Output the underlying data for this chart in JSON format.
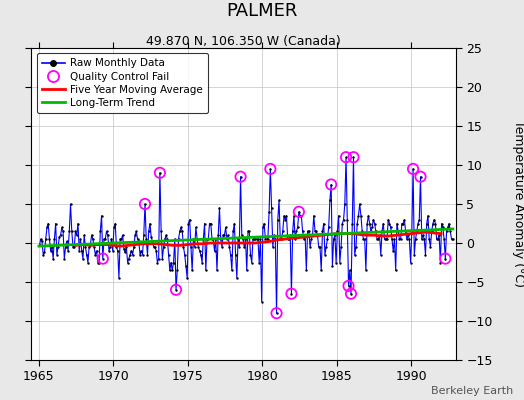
{
  "title": "PALMER",
  "subtitle": "49.870 N, 106.350 W (Canada)",
  "ylabel": "Temperature Anomaly (°C)",
  "watermark": "Berkeley Earth",
  "xlim": [
    1964.5,
    1993.0
  ],
  "ylim": [
    -15,
    25
  ],
  "yticks": [
    -15,
    -10,
    -5,
    0,
    5,
    10,
    15,
    20,
    25
  ],
  "xticks": [
    1965,
    1970,
    1975,
    1980,
    1985,
    1990
  ],
  "bg_color": "#e8e8e8",
  "plot_bg_color": "#ffffff",
  "raw_color": "#0000ff",
  "ma_color": "#ff0000",
  "trend_color": "#00bb00",
  "qc_color": "#ff00ff",
  "raw_data": [
    [
      1965.042,
      -0.3
    ],
    [
      1965.125,
      0.5
    ],
    [
      1965.208,
      0.2
    ],
    [
      1965.292,
      -1.5
    ],
    [
      1965.375,
      -1.2
    ],
    [
      1965.458,
      0.5
    ],
    [
      1965.542,
      2.0
    ],
    [
      1965.625,
      2.5
    ],
    [
      1965.708,
      0.5
    ],
    [
      1965.792,
      -1.0
    ],
    [
      1965.875,
      -0.5
    ],
    [
      1965.958,
      -2.0
    ],
    [
      1966.042,
      0.5
    ],
    [
      1966.125,
      2.5
    ],
    [
      1966.208,
      -1.5
    ],
    [
      1966.292,
      -0.5
    ],
    [
      1966.375,
      0.8
    ],
    [
      1966.458,
      1.0
    ],
    [
      1966.542,
      2.0
    ],
    [
      1966.625,
      1.5
    ],
    [
      1966.708,
      -2.0
    ],
    [
      1966.792,
      -0.5
    ],
    [
      1966.875,
      0.2
    ],
    [
      1966.958,
      -1.0
    ],
    [
      1967.042,
      1.5
    ],
    [
      1967.125,
      5.0
    ],
    [
      1967.208,
      1.5
    ],
    [
      1967.292,
      -0.5
    ],
    [
      1967.375,
      -0.5
    ],
    [
      1967.458,
      1.5
    ],
    [
      1967.542,
      1.0
    ],
    [
      1967.625,
      2.5
    ],
    [
      1967.708,
      -1.0
    ],
    [
      1967.792,
      0.5
    ],
    [
      1967.875,
      -1.0
    ],
    [
      1967.958,
      -2.0
    ],
    [
      1968.042,
      1.0
    ],
    [
      1968.125,
      -0.5
    ],
    [
      1968.208,
      -1.5
    ],
    [
      1968.292,
      -2.5
    ],
    [
      1968.375,
      -0.5
    ],
    [
      1968.458,
      -0.2
    ],
    [
      1968.542,
      1.0
    ],
    [
      1968.625,
      0.5
    ],
    [
      1968.708,
      -0.5
    ],
    [
      1968.792,
      -1.5
    ],
    [
      1968.875,
      -1.0
    ],
    [
      1968.958,
      -2.5
    ],
    [
      1969.042,
      -2.5
    ],
    [
      1969.125,
      1.5
    ],
    [
      1969.208,
      3.5
    ],
    [
      1969.292,
      -2.0
    ],
    [
      1969.375,
      0.5
    ],
    [
      1969.458,
      0.5
    ],
    [
      1969.542,
      1.5
    ],
    [
      1969.625,
      1.0
    ],
    [
      1969.708,
      -1.0
    ],
    [
      1969.792,
      -0.5
    ],
    [
      1969.875,
      0.5
    ],
    [
      1969.958,
      -1.0
    ],
    [
      1970.042,
      2.0
    ],
    [
      1970.125,
      2.5
    ],
    [
      1970.208,
      -0.5
    ],
    [
      1970.292,
      -1.0
    ],
    [
      1970.375,
      -4.5
    ],
    [
      1970.458,
      0.5
    ],
    [
      1970.542,
      0.5
    ],
    [
      1970.625,
      1.0
    ],
    [
      1970.708,
      -0.8
    ],
    [
      1970.792,
      -1.2
    ],
    [
      1970.875,
      -0.5
    ],
    [
      1970.958,
      -2.5
    ],
    [
      1971.042,
      -2.0
    ],
    [
      1971.125,
      -1.5
    ],
    [
      1971.208,
      -1.0
    ],
    [
      1971.292,
      -1.5
    ],
    [
      1971.375,
      -0.5
    ],
    [
      1971.458,
      1.0
    ],
    [
      1971.542,
      1.5
    ],
    [
      1971.625,
      0.5
    ],
    [
      1971.708,
      0.2
    ],
    [
      1971.792,
      -1.5
    ],
    [
      1971.875,
      -1.0
    ],
    [
      1971.958,
      -1.5
    ],
    [
      1972.042,
      1.0
    ],
    [
      1972.125,
      5.0
    ],
    [
      1972.208,
      0.5
    ],
    [
      1972.292,
      -1.5
    ],
    [
      1972.375,
      1.5
    ],
    [
      1972.458,
      2.5
    ],
    [
      1972.542,
      0.8
    ],
    [
      1972.625,
      0.2
    ],
    [
      1972.708,
      -0.5
    ],
    [
      1972.792,
      -0.5
    ],
    [
      1972.875,
      -1.0
    ],
    [
      1972.958,
      -2.5
    ],
    [
      1973.042,
      -2.0
    ],
    [
      1973.125,
      9.0
    ],
    [
      1973.208,
      1.5
    ],
    [
      1973.292,
      -2.0
    ],
    [
      1973.375,
      -0.5
    ],
    [
      1973.458,
      0.5
    ],
    [
      1973.542,
      1.0
    ],
    [
      1973.625,
      0.5
    ],
    [
      1973.708,
      -1.5
    ],
    [
      1973.792,
      -3.5
    ],
    [
      1973.875,
      -2.5
    ],
    [
      1973.958,
      -3.5
    ],
    [
      1974.042,
      -2.5
    ],
    [
      1974.125,
      0.5
    ],
    [
      1974.208,
      -6.0
    ],
    [
      1974.292,
      -3.5
    ],
    [
      1974.375,
      0.5
    ],
    [
      1974.458,
      1.5
    ],
    [
      1974.542,
      2.0
    ],
    [
      1974.625,
      1.5
    ],
    [
      1974.708,
      -0.5
    ],
    [
      1974.792,
      -1.5
    ],
    [
      1974.875,
      -3.0
    ],
    [
      1974.958,
      -4.5
    ],
    [
      1975.042,
      2.5
    ],
    [
      1975.125,
      3.0
    ],
    [
      1975.208,
      -0.5
    ],
    [
      1975.292,
      -3.5
    ],
    [
      1975.375,
      0.5
    ],
    [
      1975.458,
      -0.5
    ],
    [
      1975.542,
      2.0
    ],
    [
      1975.625,
      0.5
    ],
    [
      1975.708,
      -0.5
    ],
    [
      1975.792,
      -1.0
    ],
    [
      1975.875,
      -1.5
    ],
    [
      1975.958,
      -2.5
    ],
    [
      1976.042,
      0.5
    ],
    [
      1976.125,
      2.5
    ],
    [
      1976.208,
      -3.5
    ],
    [
      1976.292,
      0.5
    ],
    [
      1976.375,
      0.5
    ],
    [
      1976.458,
      2.5
    ],
    [
      1976.542,
      2.5
    ],
    [
      1976.625,
      0.5
    ],
    [
      1976.708,
      0.5
    ],
    [
      1976.792,
      -1.0
    ],
    [
      1976.875,
      0.5
    ],
    [
      1976.958,
      -3.5
    ],
    [
      1977.042,
      1.0
    ],
    [
      1977.125,
      4.5
    ],
    [
      1977.208,
      0.5
    ],
    [
      1977.292,
      -0.5
    ],
    [
      1977.375,
      1.0
    ],
    [
      1977.458,
      1.0
    ],
    [
      1977.542,
      2.0
    ],
    [
      1977.625,
      0.5
    ],
    [
      1977.708,
      1.0
    ],
    [
      1977.792,
      -0.5
    ],
    [
      1977.875,
      -1.5
    ],
    [
      1977.958,
      -3.5
    ],
    [
      1978.042,
      1.5
    ],
    [
      1978.125,
      2.5
    ],
    [
      1978.208,
      -1.5
    ],
    [
      1978.292,
      -4.5
    ],
    [
      1978.375,
      0.5
    ],
    [
      1978.458,
      -0.5
    ],
    [
      1978.542,
      8.5
    ],
    [
      1978.625,
      1.0
    ],
    [
      1978.708,
      0.5
    ],
    [
      1978.792,
      -0.5
    ],
    [
      1978.875,
      0.5
    ],
    [
      1978.958,
      -3.5
    ],
    [
      1979.042,
      1.5
    ],
    [
      1979.125,
      1.5
    ],
    [
      1979.208,
      -1.5
    ],
    [
      1979.292,
      -2.5
    ],
    [
      1979.375,
      0.5
    ],
    [
      1979.458,
      0.5
    ],
    [
      1979.542,
      0.5
    ],
    [
      1979.625,
      0.5
    ],
    [
      1979.708,
      0.5
    ],
    [
      1979.792,
      -2.5
    ],
    [
      1979.875,
      0.5
    ],
    [
      1979.958,
      -7.5
    ],
    [
      1980.042,
      2.0
    ],
    [
      1980.125,
      2.5
    ],
    [
      1980.208,
      0.5
    ],
    [
      1980.292,
      0.5
    ],
    [
      1980.375,
      0.5
    ],
    [
      1980.458,
      4.0
    ],
    [
      1980.542,
      9.5
    ],
    [
      1980.625,
      4.5
    ],
    [
      1980.708,
      -0.5
    ],
    [
      1980.792,
      1.0
    ],
    [
      1980.875,
      0.5
    ],
    [
      1980.958,
      -9.0
    ],
    [
      1981.042,
      3.0
    ],
    [
      1981.125,
      5.5
    ],
    [
      1981.208,
      0.5
    ],
    [
      1981.292,
      0.5
    ],
    [
      1981.375,
      1.5
    ],
    [
      1981.458,
      3.5
    ],
    [
      1981.542,
      3.0
    ],
    [
      1981.625,
      3.5
    ],
    [
      1981.708,
      0.5
    ],
    [
      1981.792,
      0.5
    ],
    [
      1981.875,
      1.0
    ],
    [
      1981.958,
      -6.5
    ],
    [
      1982.042,
      1.5
    ],
    [
      1982.125,
      3.5
    ],
    [
      1982.208,
      0.5
    ],
    [
      1982.292,
      1.5
    ],
    [
      1982.375,
      2.0
    ],
    [
      1982.458,
      4.0
    ],
    [
      1982.542,
      3.5
    ],
    [
      1982.625,
      3.5
    ],
    [
      1982.708,
      1.5
    ],
    [
      1982.792,
      0.5
    ],
    [
      1982.875,
      1.0
    ],
    [
      1982.958,
      -3.5
    ],
    [
      1983.042,
      1.5
    ],
    [
      1983.125,
      1.5
    ],
    [
      1983.208,
      -0.5
    ],
    [
      1983.292,
      0.5
    ],
    [
      1983.375,
      1.0
    ],
    [
      1983.458,
      3.5
    ],
    [
      1983.542,
      1.5
    ],
    [
      1983.625,
      1.5
    ],
    [
      1983.708,
      1.0
    ],
    [
      1983.792,
      -0.5
    ],
    [
      1983.875,
      -0.5
    ],
    [
      1983.958,
      -3.5
    ],
    [
      1984.042,
      1.5
    ],
    [
      1984.125,
      2.5
    ],
    [
      1984.208,
      -1.5
    ],
    [
      1984.292,
      -0.5
    ],
    [
      1984.375,
      0.5
    ],
    [
      1984.458,
      2.0
    ],
    [
      1984.542,
      5.5
    ],
    [
      1984.625,
      7.5
    ],
    [
      1984.708,
      -3.0
    ],
    [
      1984.792,
      0.5
    ],
    [
      1984.875,
      1.0
    ],
    [
      1984.958,
      -2.5
    ],
    [
      1985.042,
      1.5
    ],
    [
      1985.125,
      3.5
    ],
    [
      1985.208,
      -2.5
    ],
    [
      1985.292,
      -0.5
    ],
    [
      1985.375,
      2.5
    ],
    [
      1985.458,
      3.0
    ],
    [
      1985.542,
      5.0
    ],
    [
      1985.625,
      11.0
    ],
    [
      1985.708,
      3.0
    ],
    [
      1985.792,
      -5.5
    ],
    [
      1985.875,
      -3.5
    ],
    [
      1985.958,
      -6.5
    ],
    [
      1986.042,
      2.5
    ],
    [
      1986.125,
      11.0
    ],
    [
      1986.208,
      -1.5
    ],
    [
      1986.292,
      -0.5
    ],
    [
      1986.375,
      2.5
    ],
    [
      1986.458,
      3.5
    ],
    [
      1986.542,
      5.0
    ],
    [
      1986.625,
      3.5
    ],
    [
      1986.708,
      1.5
    ],
    [
      1986.792,
      0.5
    ],
    [
      1986.875,
      0.5
    ],
    [
      1986.958,
      -3.5
    ],
    [
      1987.042,
      2.5
    ],
    [
      1987.125,
      3.5
    ],
    [
      1987.208,
      2.5
    ],
    [
      1987.292,
      1.5
    ],
    [
      1987.375,
      2.0
    ],
    [
      1987.458,
      3.0
    ],
    [
      1987.542,
      2.5
    ],
    [
      1987.625,
      1.5
    ],
    [
      1987.708,
      0.5
    ],
    [
      1987.792,
      0.5
    ],
    [
      1987.875,
      1.0
    ],
    [
      1987.958,
      -1.5
    ],
    [
      1988.042,
      1.5
    ],
    [
      1988.125,
      2.5
    ],
    [
      1988.208,
      0.5
    ],
    [
      1988.292,
      0.5
    ],
    [
      1988.375,
      0.5
    ],
    [
      1988.458,
      3.0
    ],
    [
      1988.542,
      2.5
    ],
    [
      1988.625,
      2.0
    ],
    [
      1988.708,
      0.5
    ],
    [
      1988.792,
      -1.0
    ],
    [
      1988.875,
      0.5
    ],
    [
      1988.958,
      -3.5
    ],
    [
      1989.042,
      2.5
    ],
    [
      1989.125,
      1.5
    ],
    [
      1989.208,
      0.5
    ],
    [
      1989.292,
      0.5
    ],
    [
      1989.375,
      2.5
    ],
    [
      1989.458,
      2.5
    ],
    [
      1989.542,
      3.0
    ],
    [
      1989.625,
      1.5
    ],
    [
      1989.708,
      0.5
    ],
    [
      1989.792,
      1.0
    ],
    [
      1989.875,
      0.5
    ],
    [
      1989.958,
      -2.5
    ],
    [
      1990.042,
      1.5
    ],
    [
      1990.125,
      9.5
    ],
    [
      1990.208,
      -1.5
    ],
    [
      1990.292,
      0.5
    ],
    [
      1990.375,
      1.5
    ],
    [
      1990.458,
      2.5
    ],
    [
      1990.542,
      3.0
    ],
    [
      1990.625,
      8.5
    ],
    [
      1990.708,
      0.5
    ],
    [
      1990.792,
      1.0
    ],
    [
      1990.875,
      0.5
    ],
    [
      1990.958,
      -1.5
    ],
    [
      1991.042,
      2.5
    ],
    [
      1991.125,
      3.5
    ],
    [
      1991.208,
      0.5
    ],
    [
      1991.292,
      -0.5
    ],
    [
      1991.375,
      1.5
    ],
    [
      1991.458,
      2.5
    ],
    [
      1991.542,
      3.0
    ],
    [
      1991.625,
      2.5
    ],
    [
      1991.708,
      0.5
    ],
    [
      1991.792,
      0.5
    ],
    [
      1991.875,
      1.0
    ],
    [
      1991.958,
      -2.5
    ],
    [
      1992.042,
      2.5
    ],
    [
      1992.125,
      2.0
    ],
    [
      1992.208,
      0.5
    ],
    [
      1992.292,
      -2.0
    ],
    [
      1992.375,
      1.5
    ],
    [
      1992.458,
      2.0
    ],
    [
      1992.542,
      2.5
    ],
    [
      1992.625,
      1.5
    ],
    [
      1992.708,
      0.5
    ],
    [
      1992.792,
      0.5
    ]
  ],
  "qc_fail_points": [
    [
      1969.292,
      -2.0
    ],
    [
      1972.125,
      5.0
    ],
    [
      1973.125,
      9.0
    ],
    [
      1974.208,
      -6.0
    ],
    [
      1978.542,
      8.5
    ],
    [
      1980.542,
      9.5
    ],
    [
      1980.958,
      -9.0
    ],
    [
      1981.958,
      -6.5
    ],
    [
      1982.458,
      4.0
    ],
    [
      1984.625,
      7.5
    ],
    [
      1985.625,
      11.0
    ],
    [
      1985.792,
      -5.5
    ],
    [
      1985.958,
      -6.5
    ],
    [
      1986.125,
      11.0
    ],
    [
      1990.125,
      9.5
    ],
    [
      1990.625,
      8.5
    ],
    [
      1992.292,
      -2.0
    ]
  ],
  "moving_avg_x": [
    1967.5,
    1968.0,
    1968.5,
    1969.0,
    1969.5,
    1970.0,
    1970.5,
    1971.0,
    1971.5,
    1972.0,
    1972.5,
    1973.0,
    1973.5,
    1974.0,
    1974.5,
    1975.0,
    1975.5,
    1976.0,
    1976.5,
    1977.0,
    1977.5,
    1978.0,
    1978.5,
    1979.0,
    1979.5,
    1980.0,
    1980.5,
    1981.0,
    1981.5,
    1982.0,
    1982.5,
    1983.0,
    1983.5,
    1984.0,
    1984.5,
    1985.0,
    1985.5,
    1986.0,
    1986.5,
    1987.0,
    1987.5,
    1988.0,
    1988.5,
    1989.0,
    1989.5,
    1990.0,
    1990.5,
    1991.0,
    1991.5,
    1992.0
  ],
  "moving_avg_y": [
    -0.3,
    -0.2,
    -0.3,
    -0.2,
    -0.2,
    -0.3,
    -0.4,
    -0.3,
    -0.2,
    -0.1,
    -0.1,
    -0.1,
    -0.2,
    -0.3,
    -0.3,
    -0.2,
    -0.1,
    -0.1,
    0.0,
    0.0,
    0.0,
    0.0,
    0.0,
    0.0,
    0.0,
    0.1,
    0.2,
    0.4,
    0.5,
    0.6,
    0.7,
    0.8,
    0.9,
    1.0,
    1.1,
    1.2,
    1.2,
    1.2,
    1.1,
    1.0,
    1.0,
    0.9,
    0.9,
    1.0,
    1.1,
    1.2,
    1.3,
    1.4,
    1.3,
    1.2
  ],
  "trend_x": [
    1965.0,
    1992.8
  ],
  "trend_y": [
    -0.4,
    1.8
  ],
  "title_fontsize": 13,
  "subtitle_fontsize": 9,
  "tick_fontsize": 9,
  "ylabel_fontsize": 9
}
